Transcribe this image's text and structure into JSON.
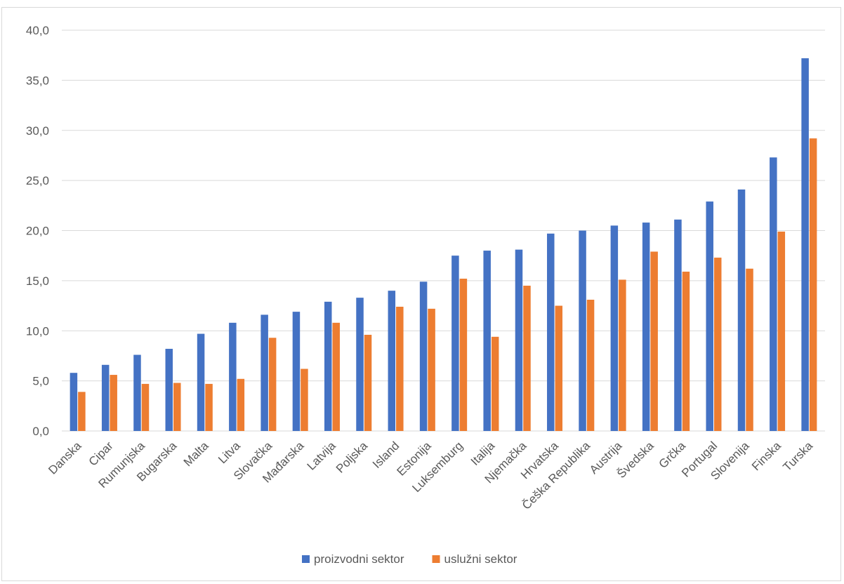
{
  "chart_data": {
    "type": "bar",
    "title": "",
    "xlabel": "",
    "ylabel": "",
    "ylim": [
      0,
      40
    ],
    "yticks": [
      "0,0",
      "5,0",
      "10,0",
      "15,0",
      "20,0",
      "25,0",
      "30,0",
      "35,0",
      "40,0"
    ],
    "grid": true,
    "legend_position": "bottom",
    "categories": [
      "Danska",
      "Cipar",
      "Rumunjska",
      "Bugarska",
      "Malta",
      "Litva",
      "Slovačka",
      "Mađarska",
      "Latvija",
      "Poljska",
      "Island",
      "Estonija",
      "Luksemburg",
      "Italija",
      "Njemačka",
      "Hrvatska",
      "Češka Republika",
      "Austrija",
      "Švedska",
      "Grčka",
      "Portugal",
      "Slovenija",
      "Finska",
      "Turska"
    ],
    "series": [
      {
        "name": "proizvodni sektor",
        "color": "#4472C4",
        "values": [
          5.8,
          6.6,
          7.6,
          8.2,
          9.7,
          10.8,
          11.6,
          11.9,
          12.9,
          13.3,
          14.0,
          14.9,
          17.5,
          18.0,
          18.1,
          19.7,
          20.0,
          20.5,
          20.8,
          21.1,
          22.9,
          24.1,
          27.3,
          37.2
        ]
      },
      {
        "name": "uslužni sektor",
        "color": "#ED7D31",
        "values": [
          3.9,
          5.6,
          4.7,
          4.8,
          4.7,
          5.2,
          9.3,
          6.2,
          10.8,
          9.6,
          12.4,
          12.2,
          15.2,
          9.4,
          14.5,
          12.5,
          13.1,
          15.1,
          17.9,
          15.9,
          17.3,
          16.2,
          19.9,
          29.2
        ]
      }
    ]
  }
}
